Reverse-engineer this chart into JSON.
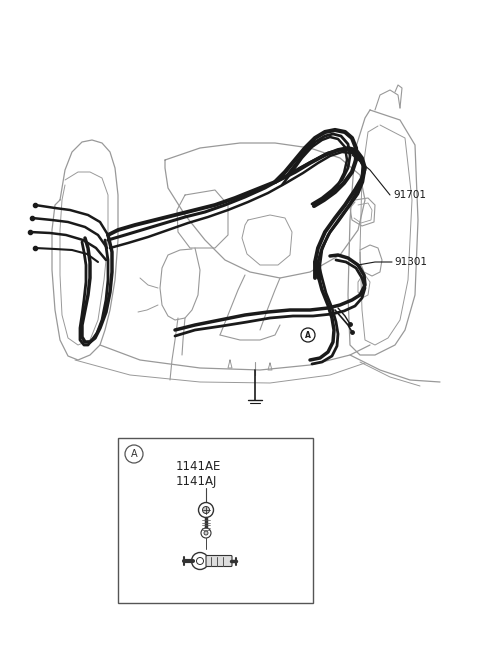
{
  "bg_color": "#ffffff",
  "line_color": "#1a1a1a",
  "gray_color": "#999999",
  "dark_gray": "#555555",
  "label_91701": "91701",
  "label_91301": "91301",
  "label_1141AE": "1141AE",
  "label_1141AJ": "1141AJ",
  "label_A": "A",
  "fig_width": 4.8,
  "fig_height": 6.55,
  "dpi": 100
}
